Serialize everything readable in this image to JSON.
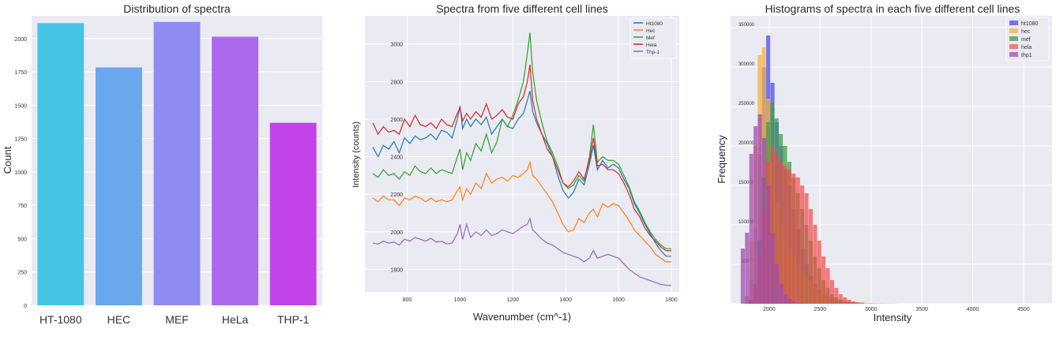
{
  "chart_data": [
    {
      "type": "bar",
      "title": "Distribution of spectra",
      "xlabel": "",
      "ylabel": "Count",
      "categories": [
        "HT-1080",
        "HEC",
        "MEF",
        "HeLa",
        "THP-1"
      ],
      "values": [
        2115,
        1783,
        2124,
        2013,
        1368
      ],
      "colors": [
        "#45c4e6",
        "#69a8ec",
        "#8e8cf2",
        "#ab68ee",
        "#c244ea"
      ],
      "ylim": [
        0,
        2170
      ],
      "yticks": [
        0,
        250,
        500,
        750,
        1000,
        1250,
        1500,
        1750,
        2000
      ],
      "grid": true,
      "background": "#eaeaf2"
    },
    {
      "type": "line",
      "title": "Spectra from five different cell lines",
      "xlabel": "Wavenumber (cm^-1)",
      "ylabel": "Intensity (counts)",
      "xlim": [
        640,
        1830
      ],
      "ylim": [
        1680,
        3150
      ],
      "xticks": [
        800,
        1000,
        1200,
        1400,
        1600,
        1800
      ],
      "yticks": [
        1800,
        2000,
        2200,
        2400,
        2600,
        2800,
        3000
      ],
      "legend_position": "top-right",
      "grid": true,
      "x": [
        670,
        690,
        710,
        730,
        750,
        770,
        790,
        810,
        830,
        850,
        870,
        890,
        910,
        930,
        950,
        970,
        990,
        1000,
        1010,
        1025,
        1040,
        1060,
        1080,
        1100,
        1120,
        1140,
        1160,
        1180,
        1200,
        1220,
        1240,
        1255,
        1265,
        1275,
        1290,
        1310,
        1330,
        1350,
        1370,
        1390,
        1410,
        1430,
        1450,
        1470,
        1490,
        1505,
        1520,
        1540,
        1560,
        1580,
        1600,
        1620,
        1640,
        1660,
        1680,
        1700,
        1720,
        1740,
        1760,
        1780,
        1800
      ],
      "series": [
        {
          "name": "Ht1080",
          "color": "#1f77b4",
          "values": [
            2450,
            2400,
            2460,
            2440,
            2480,
            2420,
            2500,
            2470,
            2510,
            2490,
            2500,
            2520,
            2490,
            2540,
            2530,
            2500,
            2600,
            2670,
            2550,
            2600,
            2560,
            2600,
            2570,
            2610,
            2520,
            2560,
            2600,
            2560,
            2550,
            2600,
            2630,
            2700,
            2750,
            2640,
            2580,
            2520,
            2470,
            2400,
            2300,
            2220,
            2180,
            2210,
            2280,
            2250,
            2360,
            2460,
            2330,
            2380,
            2340,
            2360,
            2340,
            2280,
            2230,
            2150,
            2100,
            2040,
            1990,
            1940,
            1900,
            1870,
            1870
          ]
        },
        {
          "name": "Hec",
          "color": "#ff7f0e",
          "values": [
            2180,
            2160,
            2190,
            2170,
            2170,
            2140,
            2180,
            2170,
            2190,
            2180,
            2160,
            2180,
            2160,
            2170,
            2160,
            2170,
            2220,
            2240,
            2170,
            2230,
            2200,
            2260,
            2230,
            2310,
            2260,
            2280,
            2290,
            2270,
            2300,
            2290,
            2310,
            2330,
            2370,
            2300,
            2280,
            2240,
            2200,
            2160,
            2100,
            2040,
            2000,
            2010,
            2070,
            2050,
            2100,
            2120,
            2080,
            2150,
            2130,
            2150,
            2140,
            2100,
            2060,
            2010,
            1980,
            1950,
            1920,
            1880,
            1860,
            1840,
            1840
          ]
        },
        {
          "name": "Mef",
          "color": "#2ca02c",
          "values": [
            2310,
            2290,
            2330,
            2300,
            2310,
            2280,
            2320,
            2300,
            2350,
            2320,
            2310,
            2340,
            2310,
            2330,
            2320,
            2310,
            2400,
            2440,
            2330,
            2420,
            2380,
            2470,
            2430,
            2520,
            2420,
            2480,
            2600,
            2560,
            2620,
            2700,
            2800,
            2950,
            3060,
            2850,
            2700,
            2580,
            2480,
            2420,
            2350,
            2260,
            2230,
            2250,
            2300,
            2270,
            2400,
            2570,
            2370,
            2400,
            2380,
            2380,
            2360,
            2300,
            2240,
            2160,
            2110,
            2050,
            2000,
            1960,
            1930,
            1910,
            1910
          ]
        },
        {
          "name": "Hela",
          "color": "#d62728",
          "values": [
            2580,
            2520,
            2560,
            2530,
            2540,
            2520,
            2600,
            2560,
            2620,
            2570,
            2560,
            2580,
            2550,
            2600,
            2570,
            2560,
            2630,
            2660,
            2590,
            2630,
            2600,
            2640,
            2610,
            2680,
            2600,
            2620,
            2650,
            2610,
            2600,
            2680,
            2720,
            2800,
            2890,
            2700,
            2600,
            2520,
            2440,
            2400,
            2330,
            2260,
            2240,
            2270,
            2320,
            2280,
            2380,
            2500,
            2350,
            2360,
            2330,
            2330,
            2310,
            2260,
            2200,
            2120,
            2080,
            2020,
            1980,
            1950,
            1920,
            1900,
            1900
          ]
        },
        {
          "name": "Thp-1",
          "color": "#9467bd",
          "values": [
            1940,
            1935,
            1950,
            1940,
            1945,
            1930,
            1960,
            1950,
            1970,
            1960,
            1950,
            1965,
            1945,
            1950,
            1935,
            1940,
            1990,
            2040,
            1960,
            2040,
            1970,
            2000,
            1980,
            2010,
            1980,
            1990,
            2010,
            2000,
            1990,
            2010,
            2030,
            2040,
            2070,
            2010,
            1990,
            1960,
            1940,
            1930,
            1910,
            1890,
            1880,
            1870,
            1860,
            1840,
            1860,
            1900,
            1860,
            1870,
            1880,
            1870,
            1860,
            1830,
            1800,
            1780,
            1760,
            1750,
            1740,
            1730,
            1720,
            1715,
            1715
          ]
        }
      ]
    },
    {
      "type": "bar",
      "subtype": "histogram",
      "title": "Histograms of spectra in each five different cell lines",
      "xlabel": "Intensity",
      "ylabel": "Frequency",
      "xlim": [
        1620,
        4780
      ],
      "ylim": [
        0,
        365000
      ],
      "xticks": [
        2000,
        2500,
        3000,
        3500,
        4000,
        4500
      ],
      "yticks": [
        0,
        50000,
        100000,
        150000,
        200000,
        250000,
        300000,
        350000
      ],
      "legend_position": "top-right",
      "grid": true,
      "series": [
        {
          "name": "ht1080",
          "color": "#4b4bf5",
          "alpha": 0.75,
          "bin_start": 1760,
          "bin_width": 42,
          "values": [
            8000,
            30000,
            95000,
            190000,
            300000,
            340000,
            280000,
            230000,
            200000,
            170000,
            150000,
            120000,
            95000,
            70000,
            50000,
            35000,
            25000,
            18000,
            12000,
            9000,
            6000,
            4000,
            3000,
            2000,
            1500,
            1000,
            800,
            500
          ]
        },
        {
          "name": "hec",
          "color": "#f5b03c",
          "alpha": 0.75,
          "bin_start": 1760,
          "bin_width": 42,
          "values": [
            10000,
            80000,
            200000,
            315000,
            325000,
            260000,
            180000,
            130000,
            100000,
            80000,
            70000,
            60000,
            50000,
            42000,
            35000,
            28000,
            22000,
            17000,
            13000,
            10000,
            8000,
            6000,
            5000,
            4000,
            3000,
            2500,
            2000,
            1500,
            1200,
            1000,
            800,
            600,
            500,
            400,
            300,
            200
          ]
        },
        {
          "name": "mef",
          "color": "#3f9f3f",
          "alpha": 0.75,
          "bin_start": 1800,
          "bin_width": 42,
          "values": [
            5000,
            25000,
            80000,
            160000,
            230000,
            255000,
            235000,
            215000,
            200000,
            180000,
            160000,
            140000,
            120000,
            100000,
            80000,
            60000,
            45000,
            30000,
            20000,
            12000,
            8000,
            5000,
            3000,
            2000,
            1000
          ]
        },
        {
          "name": "hela",
          "color": "#f54848",
          "alpha": 0.7,
          "bin_start": 1800,
          "bin_width": 42,
          "values": [
            5000,
            20000,
            60000,
            120000,
            180000,
            200000,
            190000,
            180000,
            175000,
            170000,
            165000,
            160000,
            150000,
            140000,
            120000,
            100000,
            80000,
            60000,
            45000,
            30000,
            20000,
            12000,
            8000,
            5000,
            3000,
            2000,
            1000
          ]
        },
        {
          "name": "thp1",
          "color": "#a24bb0",
          "alpha": 0.75,
          "bin_start": 1720,
          "bin_width": 42,
          "values": [
            70000,
            90000,
            190000,
            225000,
            240000,
            210000,
            150000,
            90000,
            50000,
            25000,
            12000,
            6000,
            3000,
            1500,
            800
          ]
        }
      ]
    }
  ]
}
